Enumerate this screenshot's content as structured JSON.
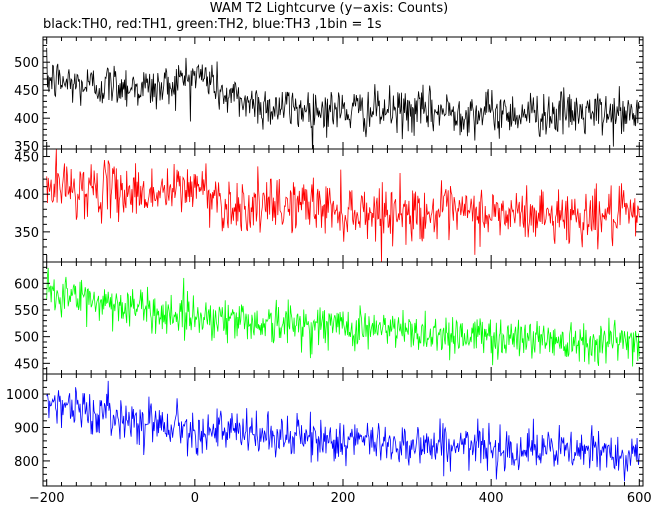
{
  "title": "WAM T2 Lightcurve (y−axis: Counts)",
  "subtitle": "black:TH0, red:TH1, green:TH2, blue:TH3 ,1bin = 1s",
  "chart_data": {
    "type": "line",
    "x_range": [
      -205,
      605
    ],
    "x_ticks": [
      -200,
      0,
      200,
      400,
      600
    ],
    "x_tick_labels": [
      "−200",
      "0",
      "200",
      "400",
      "600"
    ],
    "bin_seconds": 1,
    "panels": [
      {
        "name": "TH0",
        "color": "#000000",
        "ylim": [
          345,
          545
        ],
        "y_ticks": [
          350,
          400,
          450,
          500
        ],
        "y_tick_labels": [
          "350",
          "400",
          "450",
          "500"
        ],
        "trend": [
          [
            -200,
            470
          ],
          [
            -150,
            458
          ],
          [
            -100,
            460
          ],
          [
            -50,
            452
          ],
          [
            0,
            478
          ],
          [
            20,
            470
          ],
          [
            40,
            440
          ],
          [
            100,
            420
          ],
          [
            200,
            413
          ],
          [
            300,
            412
          ],
          [
            400,
            410
          ],
          [
            500,
            408
          ],
          [
            600,
            406
          ]
        ],
        "noise": 20
      },
      {
        "name": "TH1",
        "color": "#ff0000",
        "ylim": [
          310,
          460
        ],
        "y_ticks": [
          350,
          400,
          450
        ],
        "y_tick_labels": [
          "350",
          "400",
          "450"
        ],
        "trend": [
          [
            -200,
            410
          ],
          [
            -100,
            405
          ],
          [
            -50,
            400
          ],
          [
            0,
            410
          ],
          [
            20,
            405
          ],
          [
            40,
            385
          ],
          [
            100,
            382
          ],
          [
            150,
            388
          ],
          [
            200,
            378
          ],
          [
            300,
            375
          ],
          [
            400,
            373
          ],
          [
            500,
            372
          ],
          [
            600,
            370
          ]
        ],
        "noise": 18
      },
      {
        "name": "TH2",
        "color": "#00ff00",
        "ylim": [
          430,
          640
        ],
        "y_ticks": [
          450,
          500,
          550,
          600
        ],
        "y_tick_labels": [
          "450",
          "500",
          "550",
          "600"
        ],
        "trend": [
          [
            -200,
            585
          ],
          [
            -150,
            570
          ],
          [
            -100,
            560
          ],
          [
            -50,
            545
          ],
          [
            0,
            540
          ],
          [
            100,
            525
          ],
          [
            200,
            520
          ],
          [
            300,
            508
          ],
          [
            400,
            500
          ],
          [
            500,
            495
          ],
          [
            600,
            490
          ]
        ],
        "noise": 20
      },
      {
        "name": "TH3",
        "color": "#0000ff",
        "ylim": [
          725,
          1060
        ],
        "y_ticks": [
          800,
          900,
          1000
        ],
        "y_tick_labels": [
          "800",
          "900",
          "1000"
        ],
        "trend": [
          [
            -200,
            985
          ],
          [
            -150,
            950
          ],
          [
            -100,
            930
          ],
          [
            -50,
            915
          ],
          [
            0,
            895
          ],
          [
            100,
            875
          ],
          [
            200,
            860
          ],
          [
            300,
            850
          ],
          [
            400,
            840
          ],
          [
            500,
            830
          ],
          [
            600,
            822
          ]
        ],
        "noise": 32
      }
    ]
  }
}
